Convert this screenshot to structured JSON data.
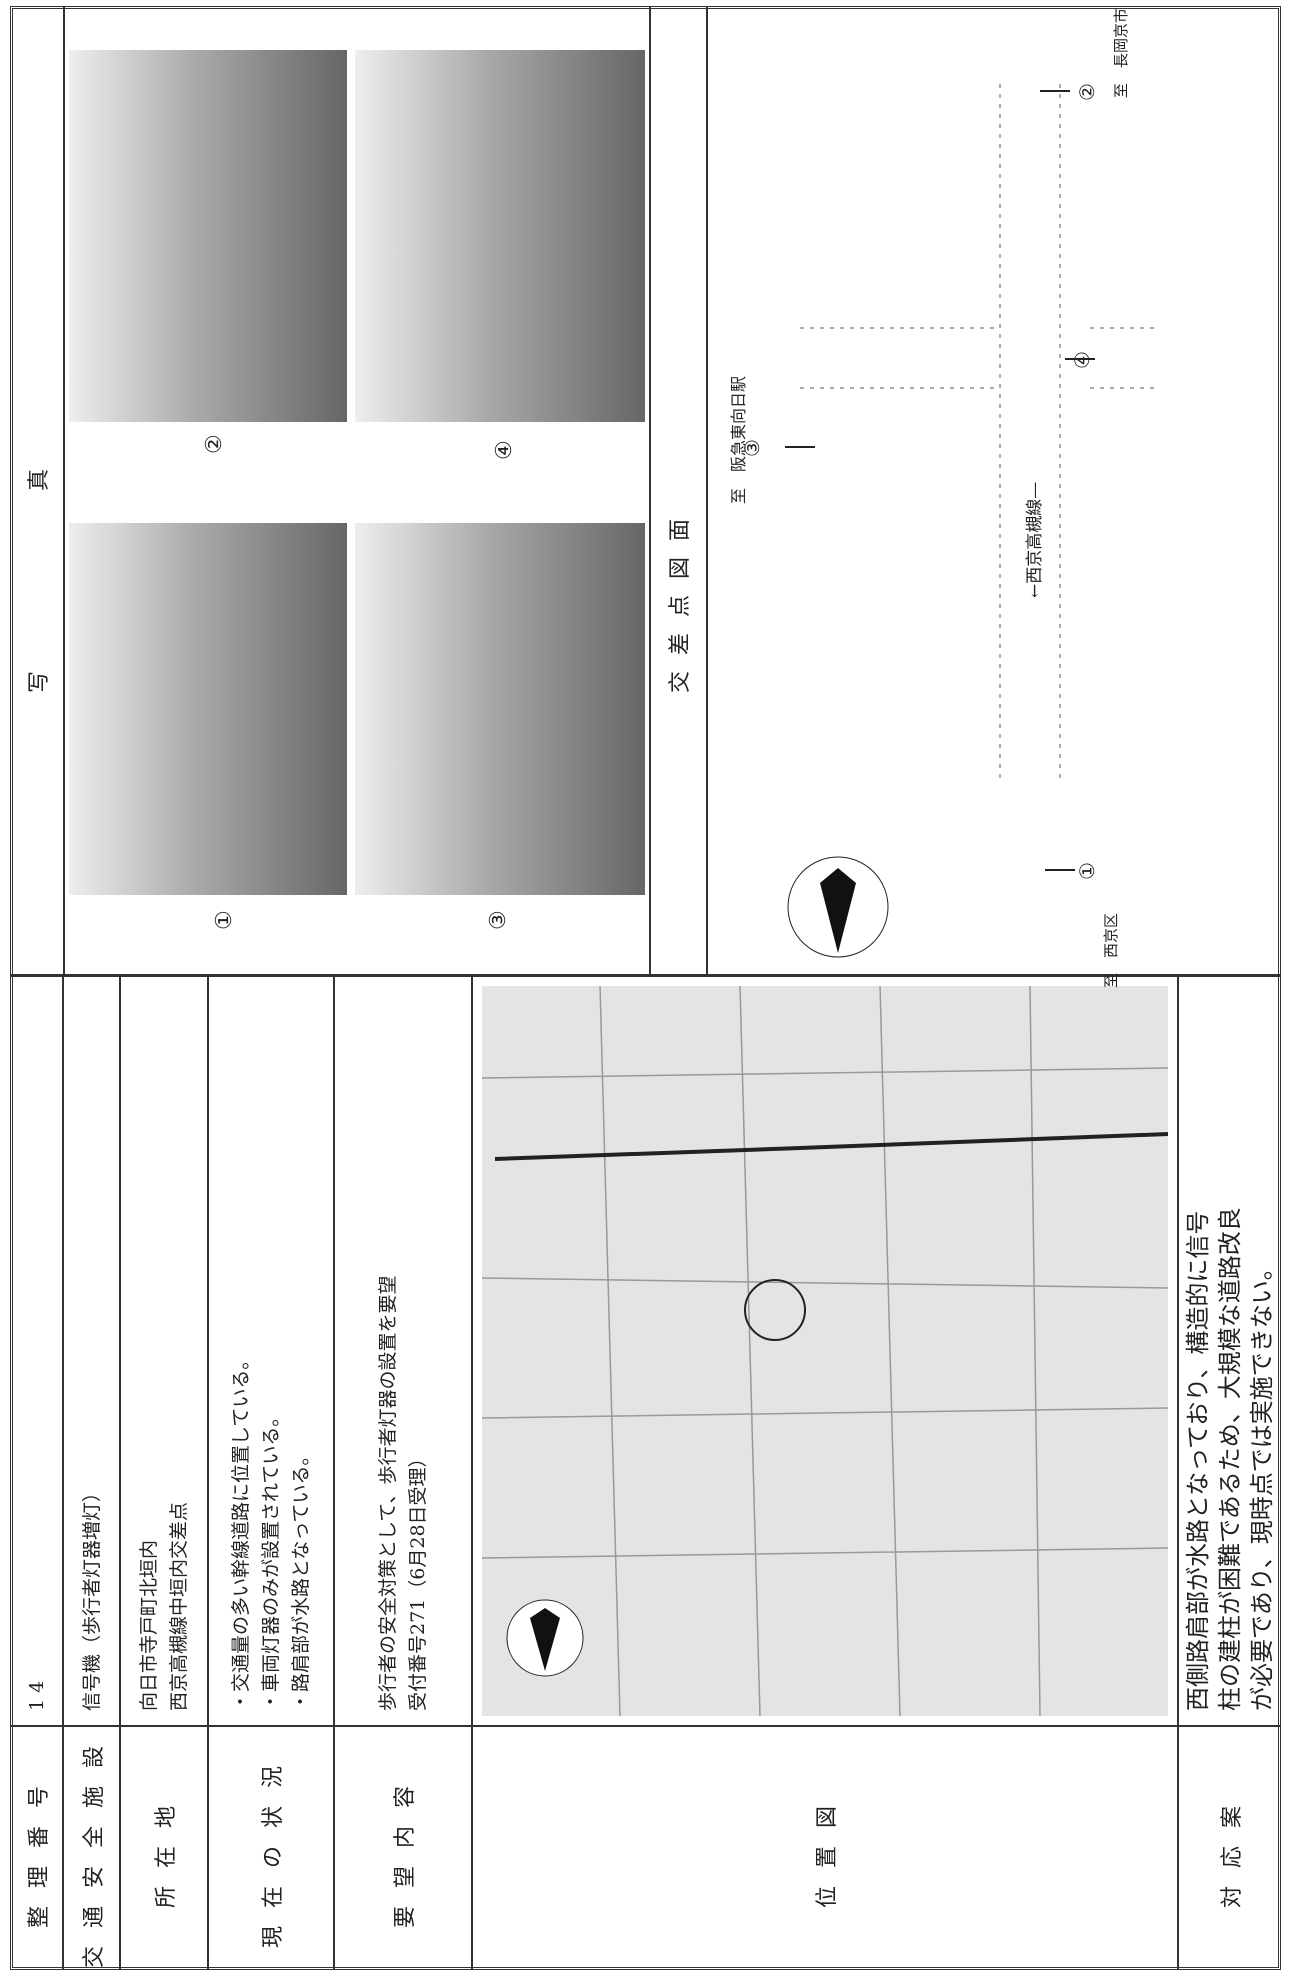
{
  "table": {
    "rows": [
      {
        "label": "整理番号",
        "value": [
          "1 4"
        ]
      },
      {
        "label": "交通安全施設",
        "value": [
          "信号機（歩行者灯器増灯）"
        ]
      },
      {
        "label": "所在地",
        "value": [
          "向日市寺戸町北垣内",
          "西京高槻線中垣内交差点"
        ]
      },
      {
        "label": "現在の状況",
        "value": [
          "・交通量の多い幹線道路に位置している。",
          "・車両灯器のみが設置されている。",
          "・路肩部が水路となっている。"
        ]
      },
      {
        "label": "要望内容",
        "value": [
          "歩行者の安全対策として、歩行者灯器の設置を要望",
          "受付番号271（6月28日受理）"
        ]
      },
      {
        "label": "位置図"
      },
      {
        "label": "対応案",
        "value": [
          "西側路肩部が水路となっており、構造的に信号",
          "柱の建柱が困難であるため、大規模な道路改良",
          "が必要であり、現時点では実施できない。"
        ]
      }
    ]
  },
  "photos": {
    "title": "写真",
    "captions": [
      "①",
      "②",
      "③",
      "④"
    ]
  },
  "diagram": {
    "title": "交差点図面",
    "road": "←西京高槻線—",
    "destinations": [
      "至　阪急東向日駅",
      "至　西京区",
      "至　長岡京市"
    ],
    "points": [
      "①",
      "②",
      "③",
      "④"
    ]
  }
}
